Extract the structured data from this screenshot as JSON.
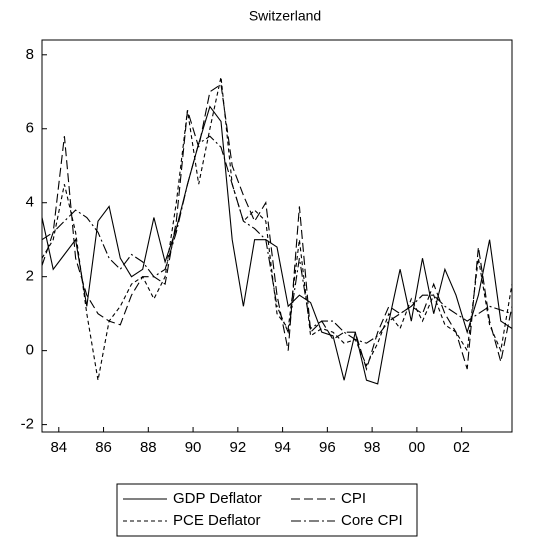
{
  "chart_data": {
    "type": "line",
    "title": "Switzerland",
    "x": [
      1983.25,
      1983.75,
      1984.25,
      1984.75,
      1985.25,
      1985.75,
      1986.25,
      1986.75,
      1987.25,
      1987.75,
      1988.25,
      1988.75,
      1989.25,
      1989.75,
      1990.25,
      1990.75,
      1991.25,
      1991.75,
      1992.25,
      1992.75,
      1993.25,
      1993.75,
      1994.25,
      1994.75,
      1995.25,
      1995.75,
      1996.25,
      1996.75,
      1997.25,
      1997.75,
      1998.25,
      1998.75,
      1999.25,
      1999.75,
      2000.25,
      2000.75,
      2001.25,
      2001.75,
      2002.25,
      2002.75,
      2003.25,
      2003.75,
      2004.25
    ],
    "series": [
      {
        "name": "GDP Deflator",
        "color": "#000000",
        "style": "solid",
        "values": [
          3.6,
          2.2,
          2.6,
          3.0,
          1.2,
          3.5,
          3.9,
          2.5,
          2.0,
          2.2,
          3.6,
          2.4,
          3.3,
          4.5,
          5.6,
          6.6,
          6.2,
          3.0,
          1.2,
          3.0,
          3.0,
          2.8,
          1.2,
          1.5,
          1.3,
          0.5,
          0.4,
          -0.8,
          0.5,
          -0.8,
          -0.9,
          0.8,
          2.2,
          0.8,
          2.5,
          1.0,
          2.2,
          1.5,
          0.5,
          1.5,
          3.0,
          0.8,
          0.6
        ]
      },
      {
        "name": "CPI",
        "color": "#000000",
        "style": "longdash",
        "values": [
          2.3,
          3.2,
          5.8,
          2.5,
          1.5,
          1.0,
          0.8,
          0.7,
          1.5,
          2.0,
          2.0,
          1.8,
          3.5,
          6.5,
          5.5,
          7.0,
          7.2,
          5.0,
          4.2,
          3.5,
          4.0,
          1.5,
          0.0,
          3.9,
          0.5,
          0.8,
          0.3,
          0.5,
          0.5,
          -0.5,
          0.5,
          1.2,
          1.0,
          1.2,
          1.0,
          1.8,
          1.0,
          0.5,
          -0.5,
          2.8,
          0.8,
          -0.3,
          1.2
        ]
      },
      {
        "name": "PCE Deflator",
        "color": "#000000",
        "style": "shortdash",
        "values": [
          2.5,
          3.0,
          4.5,
          3.2,
          1.0,
          -0.8,
          0.8,
          1.2,
          1.8,
          2.0,
          1.4,
          2.0,
          4.0,
          6.5,
          4.5,
          6.0,
          7.4,
          4.5,
          3.5,
          3.8,
          3.5,
          1.0,
          0.6,
          3.0,
          0.4,
          0.6,
          0.5,
          0.2,
          0.3,
          -0.4,
          0.2,
          1.0,
          0.6,
          1.4,
          0.8,
          1.5,
          0.7,
          0.5,
          0.0,
          2.5,
          0.7,
          0.0,
          1.8
        ]
      },
      {
        "name": "Core CPI",
        "color": "#000000",
        "style": "dashdot",
        "values": [
          3.0,
          3.2,
          3.5,
          3.8,
          3.6,
          3.2,
          2.5,
          2.2,
          2.6,
          2.4,
          2.0,
          2.2,
          3.2,
          4.5,
          5.6,
          5.8,
          5.5,
          4.5,
          3.5,
          3.3,
          3.0,
          1.2,
          0.5,
          2.5,
          0.6,
          0.8,
          0.8,
          0.5,
          0.3,
          0.2,
          0.4,
          0.8,
          1.0,
          1.2,
          1.5,
          1.5,
          1.2,
          1.0,
          0.8,
          1.0,
          1.2,
          1.1,
          1.0
        ]
      }
    ],
    "xlim": [
      1983.25,
      2004.25
    ],
    "xticks": [
      {
        "value": 1984,
        "label": "84"
      },
      {
        "value": 1986,
        "label": "86"
      },
      {
        "value": 1988,
        "label": "88"
      },
      {
        "value": 1990,
        "label": "90"
      },
      {
        "value": 1992,
        "label": "92"
      },
      {
        "value": 1994,
        "label": "94"
      },
      {
        "value": 1996,
        "label": "96"
      },
      {
        "value": 1998,
        "label": "98"
      },
      {
        "value": 2000,
        "label": "00"
      },
      {
        "value": 2002,
        "label": "02"
      }
    ],
    "ylim": [
      -2.2,
      8.4
    ],
    "yticks": [
      -2,
      0,
      2,
      4,
      6,
      8
    ],
    "grid": false,
    "legend": "bottom"
  }
}
